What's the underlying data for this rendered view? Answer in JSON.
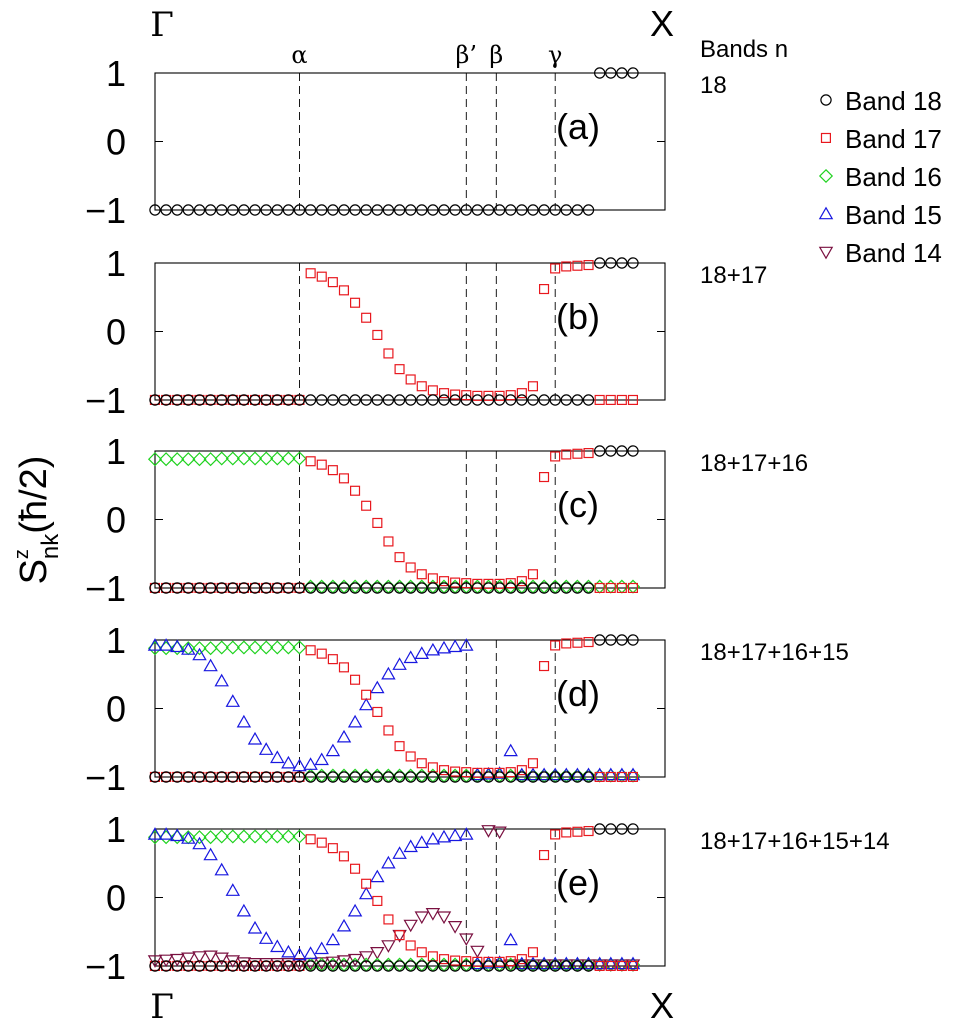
{
  "chart_data": {
    "type": "scatter",
    "ylabel_main": "S",
    "ylabel_sup": "z",
    "ylabel_sub": "nk",
    "ylabel_unit": "(ħ/2)",
    "top_left": "Γ",
    "top_right": "X",
    "bottom_left": "Γ",
    "bottom_right": "X",
    "ylim": [
      -1,
      1
    ],
    "yticks": [
      "1",
      "0",
      "−1"
    ],
    "points_count": 44,
    "markers": [
      {
        "label": "α",
        "x": 13
      },
      {
        "label": "β’",
        "x": 28
      },
      {
        "label": "β",
        "x": 30.7
      },
      {
        "label": "γ",
        "x": 36
      }
    ],
    "legend": {
      "title": "Bands n",
      "entries": [
        {
          "name": "Band 18",
          "band": 18,
          "symbol": "circle",
          "color": "#000000"
        },
        {
          "name": "Band 17",
          "band": 17,
          "symbol": "square",
          "color": "#e8181e"
        },
        {
          "name": "Band 16",
          "band": 16,
          "symbol": "diamond",
          "color": "#1ed21e"
        },
        {
          "name": "Band 15",
          "band": 15,
          "symbol": "triangle-up",
          "color": "#1818e0"
        },
        {
          "name": "Band 14",
          "band": 14,
          "symbol": "triangle-down",
          "color": "#7a1040"
        }
      ]
    },
    "panels": [
      {
        "label": "(a)",
        "bands_text": "18",
        "series": [
          {
            "band": 18,
            "values": [
              -1,
              -1,
              -1,
              -1,
              -1,
              -1,
              -1,
              -1,
              -1,
              -1,
              -1,
              -1,
              -1,
              -1,
              -1,
              -1,
              -1,
              -1,
              -1,
              -1,
              -1,
              -1,
              -1,
              -1,
              -1,
              -1,
              -1,
              -1,
              -1,
              -1,
              -1,
              -1,
              -1,
              -1,
              -1,
              -1,
              -1,
              -1,
              -1,
              -1,
              1,
              1,
              1,
              1
            ]
          }
        ]
      },
      {
        "label": "(b)",
        "bands_text": "18+17",
        "series": [
          {
            "band": 17,
            "values": [
              -1,
              -1,
              -1,
              -1,
              -1,
              -1,
              -1,
              -1,
              -1,
              -1,
              -1,
              -1,
              -1,
              -1,
              0.85,
              0.8,
              0.72,
              0.6,
              0.42,
              0.2,
              -0.05,
              -0.32,
              -0.55,
              -0.7,
              -0.8,
              -0.86,
              -0.9,
              -0.92,
              -0.93,
              -0.94,
              -0.94,
              -0.94,
              -0.93,
              -0.9,
              -0.8,
              0.62,
              0.92,
              0.95,
              0.96,
              0.97,
              -1,
              -1,
              -1,
              -1
            ]
          },
          {
            "band": 18,
            "values": [
              -1,
              -1,
              -1,
              -1,
              -1,
              -1,
              -1,
              -1,
              -1,
              -1,
              -1,
              -1,
              -1,
              -1,
              -1,
              -1,
              -1,
              -1,
              -1,
              -1,
              -1,
              -1,
              -1,
              -1,
              -1,
              -1,
              -1,
              -1,
              -1,
              -1,
              -1,
              -1,
              -1,
              -1,
              -1,
              -1,
              -1,
              -1,
              -1,
              -1,
              1,
              1,
              1,
              1
            ]
          }
        ]
      },
      {
        "label": "(c)",
        "bands_text": "18+17+16",
        "series": [
          {
            "band": 16,
            "values": [
              0.88,
              0.88,
              0.88,
              0.88,
              0.88,
              0.88,
              0.89,
              0.89,
              0.89,
              0.89,
              0.89,
              0.89,
              0.89,
              0.89,
              -0.98,
              -0.98,
              -0.98,
              -0.98,
              -0.98,
              -0.98,
              -0.98,
              -0.98,
              -0.98,
              -0.98,
              -0.98,
              -0.98,
              -0.98,
              -0.98,
              -0.98,
              -0.98,
              -0.98,
              -0.98,
              -0.98,
              -0.98,
              -0.98,
              -0.98,
              -0.98,
              -0.98,
              -0.98,
              -0.98,
              -0.98,
              -0.98,
              -0.98,
              -0.98
            ]
          },
          {
            "band": 17,
            "values": [
              -1,
              -1,
              -1,
              -1,
              -1,
              -1,
              -1,
              -1,
              -1,
              -1,
              -1,
              -1,
              -1,
              -1,
              0.85,
              0.8,
              0.72,
              0.6,
              0.42,
              0.2,
              -0.05,
              -0.32,
              -0.55,
              -0.7,
              -0.8,
              -0.86,
              -0.9,
              -0.92,
              -0.93,
              -0.94,
              -0.94,
              -0.94,
              -0.93,
              -0.9,
              -0.8,
              0.62,
              0.92,
              0.95,
              0.96,
              0.97,
              -1,
              -1,
              -1,
              -1
            ]
          },
          {
            "band": 18,
            "values": [
              -1,
              -1,
              -1,
              -1,
              -1,
              -1,
              -1,
              -1,
              -1,
              -1,
              -1,
              -1,
              -1,
              -1,
              -1,
              -1,
              -1,
              -1,
              -1,
              -1,
              -1,
              -1,
              -1,
              -1,
              -1,
              -1,
              -1,
              -1,
              -1,
              -1,
              -1,
              -1,
              -1,
              -1,
              -1,
              -1,
              -1,
              -1,
              -1,
              -1,
              1,
              1,
              1,
              1
            ]
          }
        ]
      },
      {
        "label": "(d)",
        "bands_text": "18+17+16+15",
        "series": [
          {
            "band": 16,
            "values": [
              0.88,
              0.88,
              0.88,
              0.88,
              0.88,
              0.88,
              0.89,
              0.89,
              0.89,
              0.89,
              0.89,
              0.89,
              0.89,
              0.89,
              -0.98,
              -0.98,
              -0.98,
              -0.98,
              -0.98,
              -0.98,
              -0.98,
              -0.98,
              -0.98,
              -0.98,
              -0.98,
              -0.98,
              -0.98,
              -0.98,
              -0.98,
              -0.98,
              -0.98,
              -0.98,
              -0.98,
              -0.98,
              -0.98,
              -0.98,
              -0.98,
              -0.98,
              -0.98,
              -0.98,
              -0.98,
              -0.98,
              -0.98,
              -0.98
            ]
          },
          {
            "band": 15,
            "values": [
              0.92,
              0.92,
              0.9,
              0.86,
              0.78,
              0.62,
              0.4,
              0.1,
              -0.2,
              -0.45,
              -0.6,
              -0.72,
              -0.8,
              -0.84,
              -0.82,
              -0.75,
              -0.62,
              -0.42,
              -0.2,
              0.05,
              0.3,
              0.5,
              0.64,
              0.74,
              0.8,
              0.85,
              0.88,
              0.9,
              0.92,
              -0.97,
              -0.96,
              -0.95,
              -0.62,
              -0.97,
              -0.97,
              -0.97,
              -0.97,
              -0.97,
              -0.97,
              -0.97,
              -0.97,
              -0.97,
              -0.97,
              -0.97
            ]
          },
          {
            "band": 17,
            "values": [
              -1,
              -1,
              -1,
              -1,
              -1,
              -1,
              -1,
              -1,
              -1,
              -1,
              -1,
              -1,
              -1,
              -1,
              0.85,
              0.8,
              0.72,
              0.6,
              0.42,
              0.2,
              -0.05,
              -0.32,
              -0.55,
              -0.7,
              -0.8,
              -0.86,
              -0.9,
              -0.92,
              -0.93,
              -0.94,
              -0.94,
              -0.94,
              -0.93,
              -0.9,
              -0.8,
              0.62,
              0.92,
              0.95,
              0.96,
              0.97,
              -1,
              -1,
              -1,
              -1
            ]
          },
          {
            "band": 18,
            "values": [
              -1,
              -1,
              -1,
              -1,
              -1,
              -1,
              -1,
              -1,
              -1,
              -1,
              -1,
              -1,
              -1,
              -1,
              -1,
              -1,
              -1,
              -1,
              -1,
              -1,
              -1,
              -1,
              -1,
              -1,
              -1,
              -1,
              -1,
              -1,
              -1,
              -1,
              -1,
              -1,
              -1,
              -1,
              -1,
              -1,
              -1,
              -1,
              -1,
              -1,
              1,
              1,
              1,
              1
            ]
          }
        ]
      },
      {
        "label": "(e)",
        "bands_text": "18+17+16+15+14",
        "series": [
          {
            "band": 14,
            "values": [
              -0.92,
              -0.91,
              -0.9,
              -0.88,
              -0.86,
              -0.85,
              -0.88,
              -0.92,
              -0.95,
              -0.96,
              -0.96,
              -0.96,
              -0.96,
              -0.96,
              -0.96,
              -0.95,
              -0.94,
              -0.92,
              -0.9,
              -0.86,
              -0.8,
              -0.7,
              -0.55,
              -0.4,
              -0.28,
              -0.23,
              -0.28,
              -0.42,
              -0.6,
              -0.78,
              0.98,
              0.96,
              -0.98,
              -0.98,
              -0.98,
              -0.98,
              -0.98,
              -0.98,
              -0.98,
              -0.98,
              -0.98,
              -0.98,
              -0.98,
              -0.98
            ]
          },
          {
            "band": 16,
            "values": [
              0.88,
              0.88,
              0.88,
              0.88,
              0.88,
              0.88,
              0.89,
              0.89,
              0.89,
              0.89,
              0.89,
              0.89,
              0.89,
              0.89,
              -0.98,
              -0.98,
              -0.98,
              -0.98,
              -0.98,
              -0.98,
              -0.98,
              -0.98,
              -0.98,
              -0.98,
              -0.98,
              -0.98,
              -0.98,
              -0.98,
              -0.98,
              -0.98,
              -0.98,
              -0.98,
              -0.98,
              -0.98,
              -0.98,
              -0.98,
              -0.98,
              -0.98,
              -0.98,
              -0.98,
              -0.98,
              -0.98,
              -0.98,
              -0.98
            ]
          },
          {
            "band": 15,
            "values": [
              0.92,
              0.92,
              0.9,
              0.86,
              0.78,
              0.62,
              0.4,
              0.1,
              -0.2,
              -0.45,
              -0.6,
              -0.72,
              -0.8,
              -0.84,
              -0.82,
              -0.75,
              -0.62,
              -0.42,
              -0.2,
              0.05,
              0.3,
              0.5,
              0.64,
              0.74,
              0.8,
              0.85,
              0.88,
              0.9,
              0.92,
              -0.97,
              -0.96,
              -0.95,
              -0.62,
              -0.97,
              -0.97,
              -0.97,
              -0.97,
              -0.97,
              -0.97,
              -0.97,
              -0.97,
              -0.97,
              -0.97,
              -0.97
            ]
          },
          {
            "band": 17,
            "values": [
              -1,
              -1,
              -1,
              -1,
              -1,
              -1,
              -1,
              -1,
              -1,
              -1,
              -1,
              -1,
              -1,
              -1,
              0.85,
              0.8,
              0.72,
              0.6,
              0.42,
              0.2,
              -0.05,
              -0.32,
              -0.55,
              -0.7,
              -0.8,
              -0.86,
              -0.9,
              -0.92,
              -0.93,
              -0.94,
              -0.94,
              -0.94,
              -0.93,
              -0.9,
              -0.8,
              0.62,
              0.92,
              0.95,
              0.96,
              0.97,
              -1,
              -1,
              -1,
              -1
            ]
          },
          {
            "band": 18,
            "values": [
              -1,
              -1,
              -1,
              -1,
              -1,
              -1,
              -1,
              -1,
              -1,
              -1,
              -1,
              -1,
              -1,
              -1,
              -1,
              -1,
              -1,
              -1,
              -1,
              -1,
              -1,
              -1,
              -1,
              -1,
              -1,
              -1,
              -1,
              -1,
              -1,
              -1,
              -1,
              -1,
              -1,
              -1,
              -1,
              -1,
              -1,
              -1,
              -1,
              -1,
              1,
              1,
              1,
              1
            ]
          }
        ]
      }
    ]
  }
}
